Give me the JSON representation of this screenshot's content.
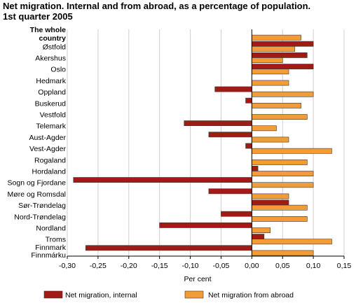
{
  "title_line1": "Net migration. Internal and from abroad, as a percentage of population.",
  "title_line2": "1st quarter 2005",
  "chart_data": {
    "type": "bar",
    "orientation": "horizontal",
    "title": "Net migration. Internal and from abroad, as a percentage of population. 1st quarter 2005",
    "xlabel": "Per cent",
    "xlim": [
      -0.3,
      0.15
    ],
    "xticks": [
      -0.3,
      -0.25,
      -0.2,
      -0.15,
      -0.1,
      -0.05,
      0.0,
      0.05,
      0.1,
      0.15
    ],
    "xtick_labels": [
      "-0,30",
      "-0,25",
      "-0,20",
      "-0,15",
      "-0,10",
      "-0,05",
      "0,00",
      "0,05",
      "0,10",
      "0,15"
    ],
    "grid": "vertical",
    "legend_placement": "bottom",
    "categories": [
      "The whole country",
      "Østfold",
      "Akershus",
      "Oslo",
      "Hedmark",
      "Oppland",
      "Buskerud",
      "Vestfold",
      "Telemark",
      "Aust-Agder",
      "Vest-Agder",
      "Rogaland",
      "Hordaland",
      "Sogn og Fjordane",
      "Møre og Romsdal",
      "Sør-Trøndelag",
      "Nord-Trøndelag",
      "Nordland",
      "Troms",
      "Finnmark Finnmárku"
    ],
    "series": [
      {
        "name": "Net migration, internal",
        "color": "#a11a14",
        "values": [
          0.0,
          0.1,
          0.09,
          0.1,
          0.0,
          -0.06,
          -0.01,
          0.0,
          -0.11,
          -0.07,
          -0.01,
          0.0,
          0.01,
          -0.29,
          -0.07,
          0.06,
          -0.05,
          -0.15,
          0.02,
          -0.27
        ]
      },
      {
        "name": "Net migration from abroad",
        "color": "#f29c38",
        "values": [
          0.08,
          0.07,
          0.05,
          0.06,
          0.06,
          0.1,
          0.08,
          0.09,
          0.04,
          0.06,
          0.13,
          0.09,
          0.1,
          0.1,
          0.06,
          0.09,
          0.09,
          0.03,
          0.13,
          0.1
        ]
      }
    ]
  }
}
